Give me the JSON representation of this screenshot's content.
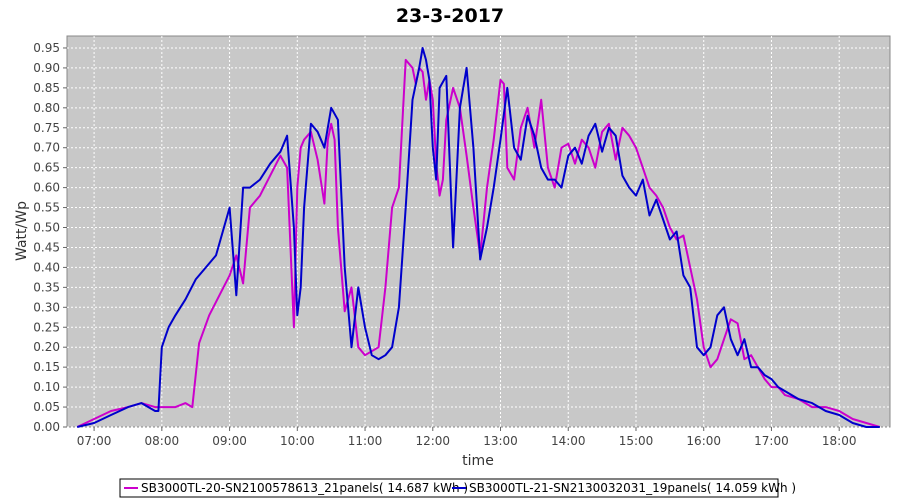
{
  "chart_data": {
    "type": "line",
    "title": "23-3-2017",
    "xlabel": "time",
    "ylabel": "Watt/Wp",
    "xlim": [
      6.6,
      18.75
    ],
    "ylim": [
      0,
      0.98
    ],
    "grid": true,
    "x_ticks": [
      "07:00",
      "08:00",
      "09:00",
      "10:00",
      "11:00",
      "12:00",
      "13:00",
      "14:00",
      "15:00",
      "16:00",
      "17:00",
      "18:00"
    ],
    "y_ticks": [
      "0.00",
      "0.05",
      "0.10",
      "0.15",
      "0.20",
      "0.25",
      "0.30",
      "0.35",
      "0.40",
      "0.45",
      "0.50",
      "0.55",
      "0.60",
      "0.65",
      "0.70",
      "0.75",
      "0.80",
      "0.85",
      "0.90",
      "0.95"
    ],
    "legend_position": "bottom",
    "series": [
      {
        "name": "SB3000TL-20-SN2100578613_21panels( 14.687 kWh )",
        "color": "#cc00cc",
        "x": [
          6.75,
          7.0,
          7.25,
          7.5,
          7.7,
          7.9,
          8.0,
          8.2,
          8.35,
          8.45,
          8.55,
          8.7,
          8.85,
          9.0,
          9.1,
          9.2,
          9.3,
          9.45,
          9.6,
          9.75,
          9.85,
          9.95,
          10.0,
          10.05,
          10.1,
          10.2,
          10.3,
          10.4,
          10.45,
          10.5,
          10.55,
          10.6,
          10.7,
          10.8,
          10.9,
          11.0,
          11.1,
          11.2,
          11.3,
          11.4,
          11.5,
          11.6,
          11.7,
          11.75,
          11.8,
          11.85,
          11.9,
          11.95,
          12.0,
          12.05,
          12.1,
          12.15,
          12.2,
          12.3,
          12.4,
          12.5,
          12.6,
          12.7,
          12.8,
          12.9,
          13.0,
          13.05,
          13.1,
          13.2,
          13.3,
          13.4,
          13.5,
          13.6,
          13.7,
          13.8,
          13.9,
          14.0,
          14.1,
          14.2,
          14.3,
          14.4,
          14.5,
          14.6,
          14.7,
          14.8,
          14.9,
          15.0,
          15.1,
          15.2,
          15.3,
          15.4,
          15.5,
          15.6,
          15.7,
          15.8,
          15.9,
          16.0,
          16.1,
          16.2,
          16.3,
          16.4,
          16.5,
          16.6,
          16.7,
          16.8,
          16.9,
          17.0,
          17.1,
          17.2,
          17.4,
          17.6,
          17.8,
          18.0,
          18.2,
          18.4,
          18.6
        ],
        "y": [
          0.0,
          0.02,
          0.04,
          0.05,
          0.06,
          0.05,
          0.05,
          0.05,
          0.06,
          0.05,
          0.21,
          0.28,
          0.33,
          0.38,
          0.43,
          0.36,
          0.55,
          0.58,
          0.63,
          0.68,
          0.65,
          0.25,
          0.6,
          0.7,
          0.72,
          0.74,
          0.67,
          0.56,
          0.72,
          0.76,
          0.72,
          0.5,
          0.29,
          0.35,
          0.2,
          0.18,
          0.19,
          0.2,
          0.35,
          0.55,
          0.6,
          0.92,
          0.9,
          0.86,
          0.9,
          0.89,
          0.82,
          0.87,
          0.82,
          0.66,
          0.58,
          0.62,
          0.77,
          0.85,
          0.8,
          0.68,
          0.55,
          0.43,
          0.6,
          0.72,
          0.87,
          0.86,
          0.65,
          0.62,
          0.75,
          0.8,
          0.7,
          0.82,
          0.65,
          0.6,
          0.7,
          0.71,
          0.66,
          0.72,
          0.7,
          0.65,
          0.74,
          0.76,
          0.67,
          0.75,
          0.73,
          0.7,
          0.65,
          0.6,
          0.58,
          0.55,
          0.5,
          0.47,
          0.48,
          0.4,
          0.32,
          0.2,
          0.15,
          0.17,
          0.22,
          0.27,
          0.26,
          0.17,
          0.18,
          0.15,
          0.12,
          0.1,
          0.1,
          0.08,
          0.07,
          0.05,
          0.05,
          0.04,
          0.02,
          0.01,
          0.0
        ]
      },
      {
        "name": "SB3000TL-21-SN2130032031_19panels( 14.059 kWh )",
        "color": "#0000cc",
        "x": [
          6.75,
          7.0,
          7.25,
          7.5,
          7.7,
          7.9,
          7.95,
          8.0,
          8.1,
          8.2,
          8.35,
          8.5,
          8.65,
          8.8,
          9.0,
          9.1,
          9.2,
          9.3,
          9.45,
          9.6,
          9.75,
          9.85,
          9.95,
          10.0,
          10.05,
          10.1,
          10.2,
          10.3,
          10.4,
          10.5,
          10.6,
          10.7,
          10.8,
          10.9,
          11.0,
          11.1,
          11.2,
          11.3,
          11.4,
          11.5,
          11.6,
          11.7,
          11.8,
          11.85,
          11.9,
          11.95,
          12.0,
          12.05,
          12.1,
          12.2,
          12.3,
          12.4,
          12.5,
          12.6,
          12.7,
          12.8,
          12.9,
          13.0,
          13.1,
          13.2,
          13.3,
          13.4,
          13.5,
          13.6,
          13.7,
          13.8,
          13.9,
          14.0,
          14.1,
          14.2,
          14.3,
          14.4,
          14.5,
          14.6,
          14.7,
          14.8,
          14.9,
          15.0,
          15.1,
          15.2,
          15.3,
          15.4,
          15.5,
          15.6,
          15.7,
          15.8,
          15.9,
          16.0,
          16.1,
          16.2,
          16.3,
          16.4,
          16.5,
          16.6,
          16.7,
          16.8,
          16.9,
          17.0,
          17.1,
          17.2,
          17.4,
          17.6,
          17.8,
          18.0,
          18.2,
          18.4,
          18.6
        ],
        "y": [
          0.0,
          0.01,
          0.03,
          0.05,
          0.06,
          0.04,
          0.04,
          0.2,
          0.25,
          0.28,
          0.32,
          0.37,
          0.4,
          0.43,
          0.55,
          0.33,
          0.6,
          0.6,
          0.62,
          0.66,
          0.69,
          0.73,
          0.5,
          0.28,
          0.35,
          0.55,
          0.76,
          0.74,
          0.7,
          0.8,
          0.77,
          0.4,
          0.2,
          0.35,
          0.25,
          0.18,
          0.17,
          0.18,
          0.2,
          0.3,
          0.55,
          0.82,
          0.9,
          0.95,
          0.92,
          0.87,
          0.7,
          0.62,
          0.85,
          0.88,
          0.45,
          0.8,
          0.9,
          0.7,
          0.42,
          0.5,
          0.6,
          0.72,
          0.85,
          0.7,
          0.67,
          0.78,
          0.73,
          0.65,
          0.62,
          0.62,
          0.6,
          0.68,
          0.7,
          0.66,
          0.73,
          0.76,
          0.69,
          0.75,
          0.73,
          0.63,
          0.6,
          0.58,
          0.62,
          0.53,
          0.57,
          0.52,
          0.47,
          0.49,
          0.38,
          0.35,
          0.2,
          0.18,
          0.2,
          0.28,
          0.3,
          0.22,
          0.18,
          0.22,
          0.15,
          0.15,
          0.13,
          0.12,
          0.1,
          0.09,
          0.07,
          0.06,
          0.04,
          0.03,
          0.01,
          0.0,
          0.0
        ]
      }
    ]
  }
}
